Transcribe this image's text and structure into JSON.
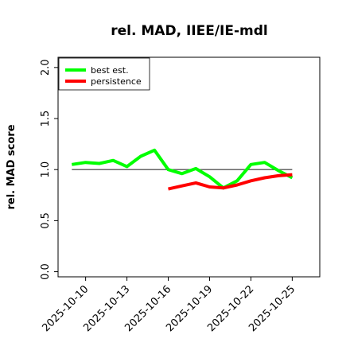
{
  "chart_data": {
    "type": "line",
    "title": "rel. MAD, IIEE/IE-mdl",
    "xlabel": "",
    "ylabel": "rel. MAD score",
    "xlim": [
      "2025-10-08",
      "2025-10-27"
    ],
    "ylim": [
      -0.05,
      2.1
    ],
    "x_ticks": [
      "2025-10-10",
      "2025-10-13",
      "2025-10-16",
      "2025-10-19",
      "2025-10-22",
      "2025-10-25"
    ],
    "y_ticks": [
      "0.0",
      "0.5",
      "1.0",
      "1.5",
      "2.0"
    ],
    "reference_line": 1.0,
    "legend_position": "top-left",
    "grid": false,
    "series": [
      {
        "name": "best est.",
        "color": "#00ff00",
        "x": [
          "2025-10-09",
          "2025-10-10",
          "2025-10-11",
          "2025-10-12",
          "2025-10-13",
          "2025-10-14",
          "2025-10-15",
          "2025-10-16",
          "2025-10-17",
          "2025-10-18",
          "2025-10-19",
          "2025-10-20",
          "2025-10-21",
          "2025-10-22",
          "2025-10-23",
          "2025-10-24",
          "2025-10-25"
        ],
        "values": [
          1.05,
          1.07,
          1.06,
          1.09,
          1.03,
          1.13,
          1.19,
          1.0,
          0.96,
          1.01,
          0.93,
          0.82,
          0.89,
          1.05,
          1.07,
          0.99,
          0.92
        ]
      },
      {
        "name": "persistence",
        "color": "#ff0000",
        "x": [
          "2025-10-16",
          "2025-10-17",
          "2025-10-18",
          "2025-10-19",
          "2025-10-20",
          "2025-10-21",
          "2025-10-22",
          "2025-10-23",
          "2025-10-24",
          "2025-10-25"
        ],
        "values": [
          0.81,
          0.84,
          0.87,
          0.83,
          0.82,
          0.85,
          0.89,
          0.92,
          0.94,
          0.95
        ]
      }
    ]
  }
}
